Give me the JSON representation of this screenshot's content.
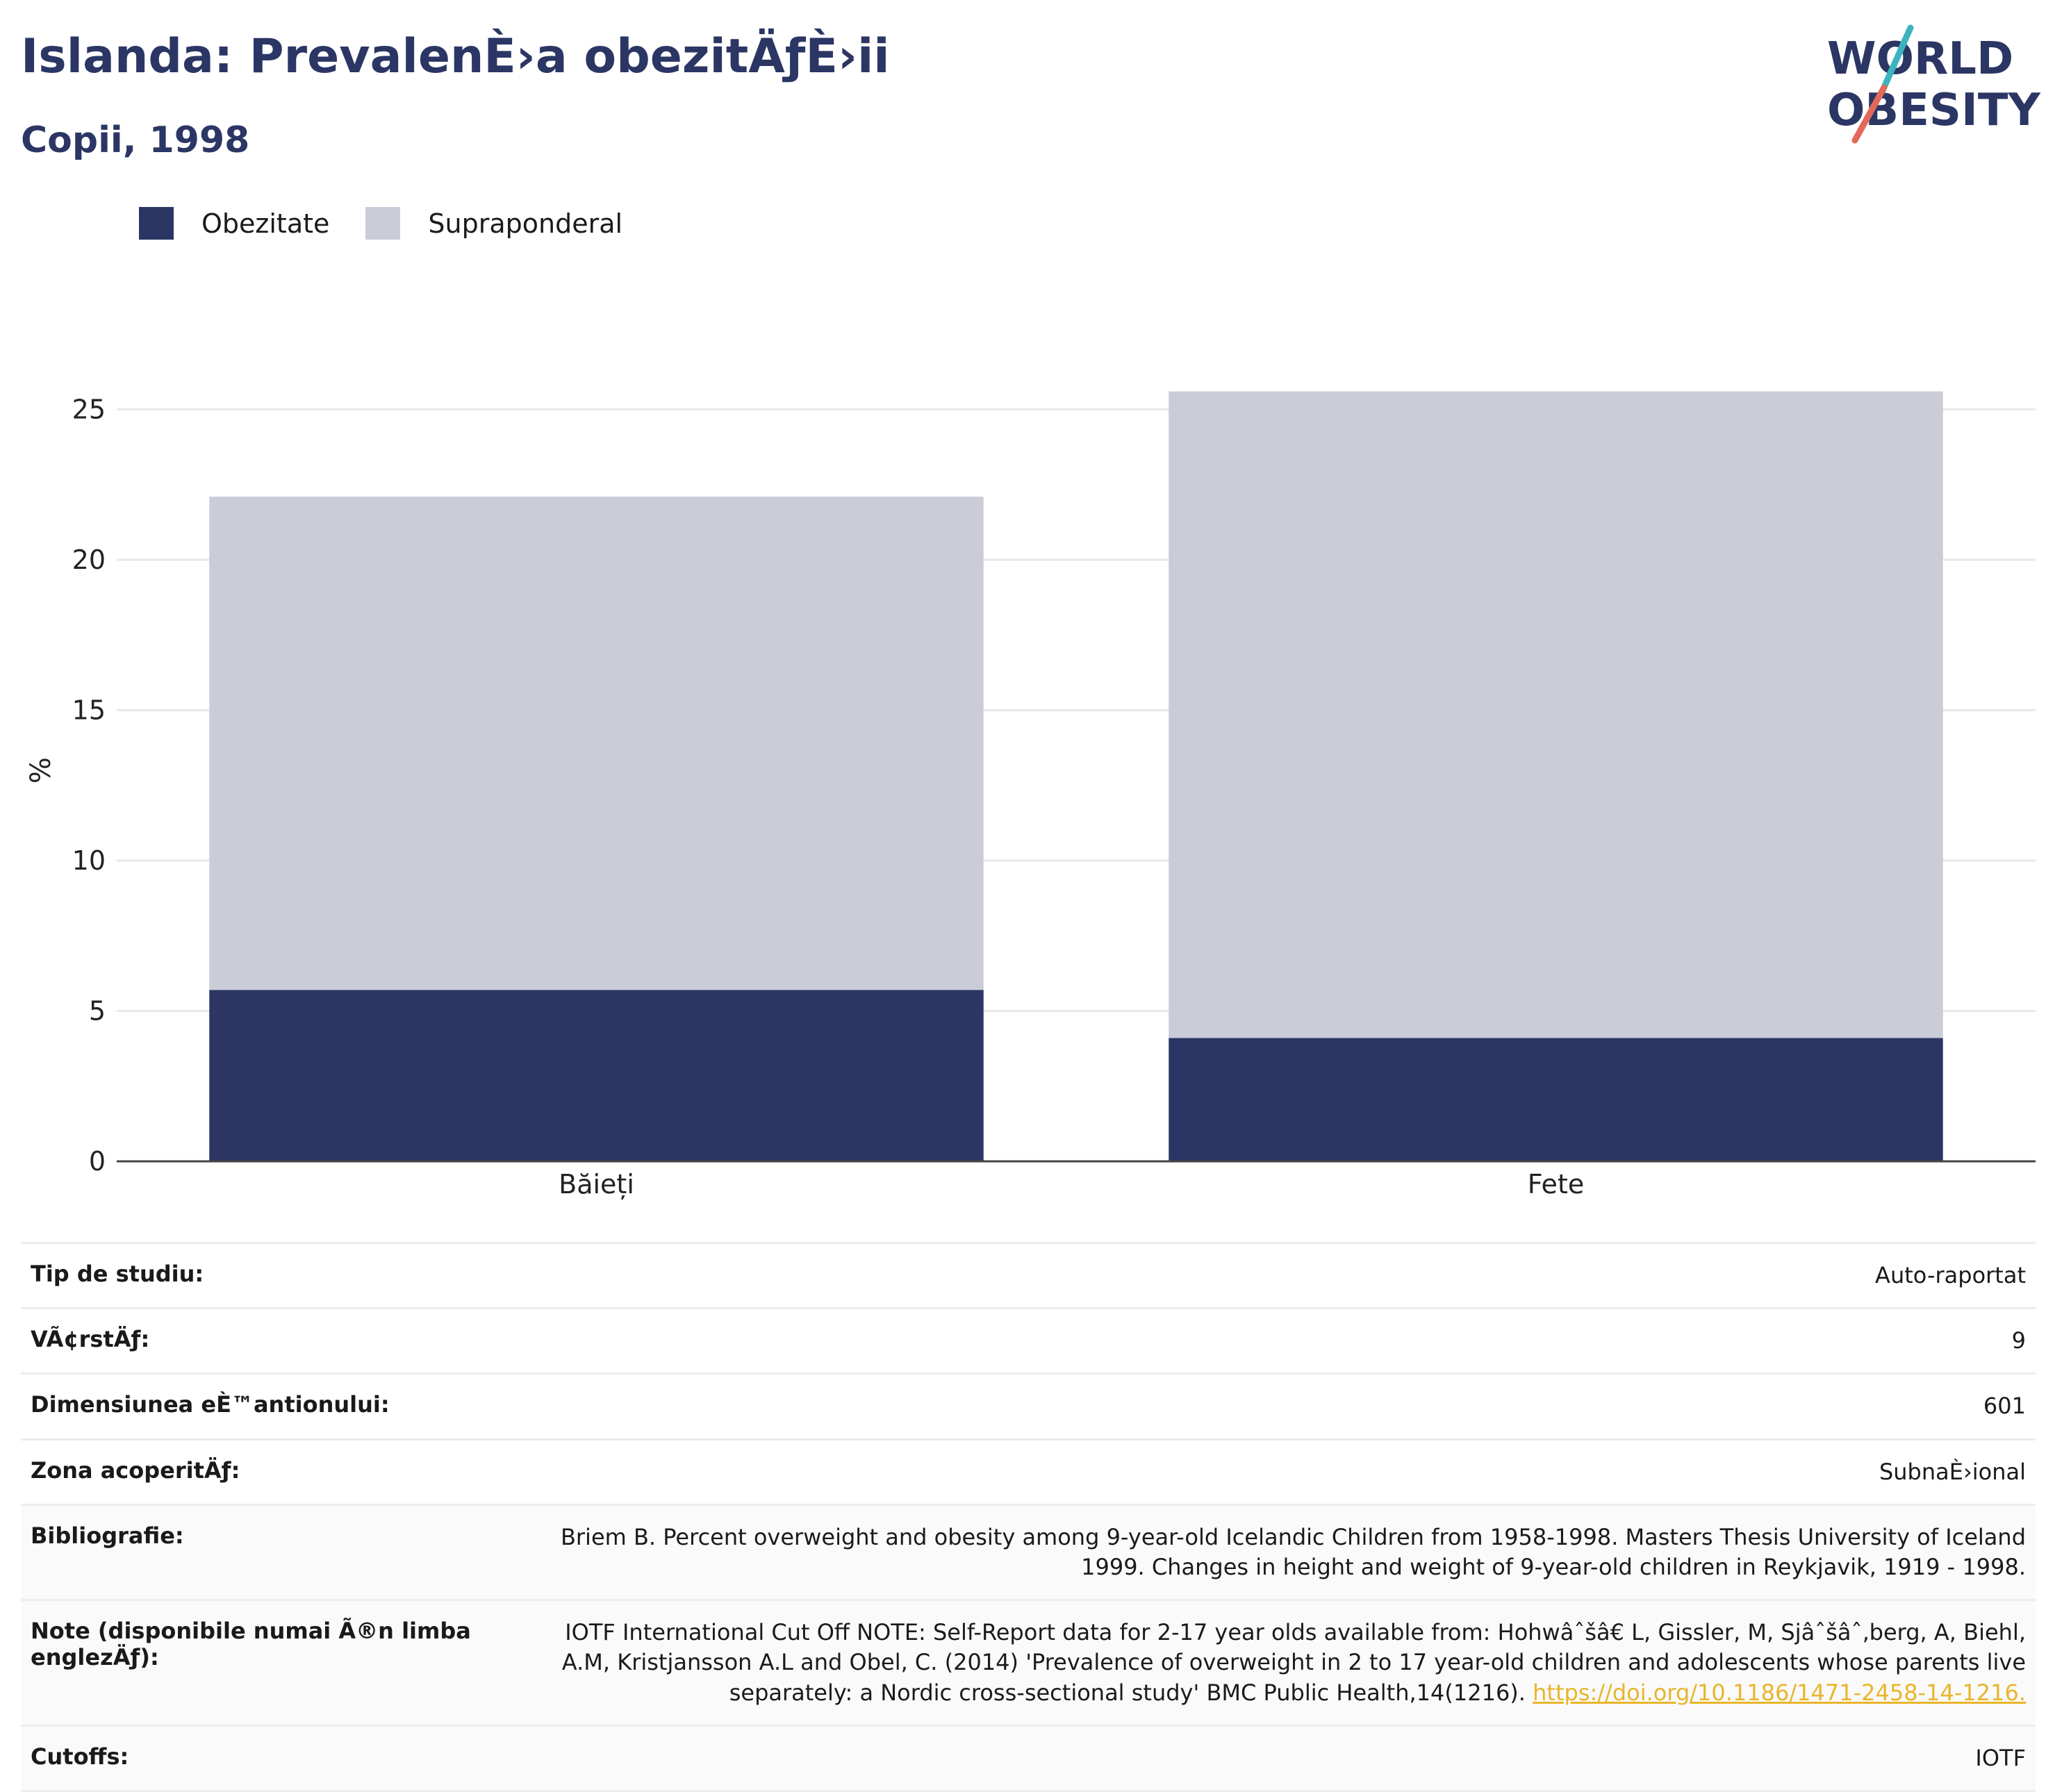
{
  "header": {
    "title": "Islanda: PrevalenÈ›a obezitÄƒÈ›ii",
    "subtitle": "Copii, 1998"
  },
  "logo": {
    "line1": "WORLD",
    "line2": "OBESITY",
    "colors": {
      "text": "#2b3664",
      "slash_teal": "#3bb4bd",
      "slash_red": "#e2695a"
    }
  },
  "legend": [
    {
      "label": "Obezitate",
      "color": "#2b3664"
    },
    {
      "label": "Supraponderal",
      "color": "#cacdd8"
    }
  ],
  "chart_data": {
    "type": "bar",
    "stacked": true,
    "categories": [
      "Băieți",
      "Fete"
    ],
    "series": [
      {
        "name": "Obezitate",
        "values": [
          5.7,
          4.1
        ],
        "color": "#2b3664"
      },
      {
        "name": "Supraponderal",
        "values": [
          16.4,
          21.5
        ],
        "color": "#cacdd8"
      }
    ],
    "ylabel": "%",
    "ylim": [
      0,
      26
    ],
    "yticks": [
      0,
      5,
      10,
      15,
      20,
      25
    ],
    "grid": true,
    "legend_position": "top-left"
  },
  "info": [
    {
      "label": "Tip de studiu:",
      "value": "Auto-raportat"
    },
    {
      "label": "VÃ¢rstÄƒ:",
      "value": "9"
    },
    {
      "label": "Dimensiunea eÈ™antionului:",
      "value": "601"
    },
    {
      "label": "Zona acoperitÄƒ:",
      "value": "SubnaÈ›ional"
    },
    {
      "label": "Bibliografie:",
      "value": "Briem B. Percent overweight and obesity among 9-year-old Icelandic Children from 1958-1998. Masters Thesis University of Iceland 1999. Changes in height and weight of 9-year-old children in Reykjavik, 1919 - 1998."
    },
    {
      "label": "Note (disponibile numai Ã®n limba englezÄƒ):",
      "value": "IOTF International Cut Off NOTE: Self-Report data for 2-17 year olds available from: Hohwâˆšâ€  L, Gissler, M, Sjâˆšâˆ‚berg, A, Biehl, A.M, Kristjansson A.L and Obel, C. (2014) 'Prevalence of overweight in 2 to 17 year-old children and adolescents whose parents live separately: a Nordic cross-sectional study' BMC Public Health,14(1216). ",
      "link": "https://doi.org/10.1186/1471-2458-14-1216."
    },
    {
      "label": "Cutoffs:",
      "value": "IOTF"
    }
  ]
}
